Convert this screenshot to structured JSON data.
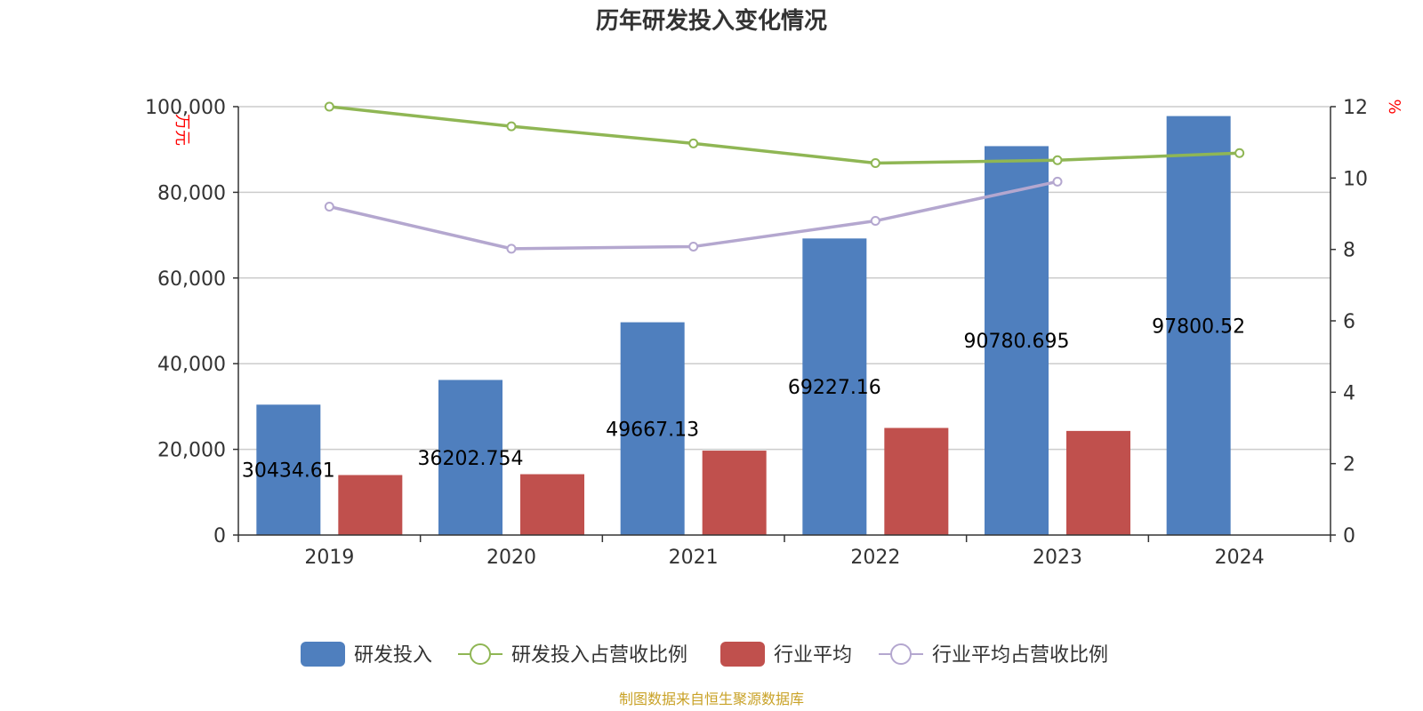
{
  "colors": {
    "rd_bar": "#4f7fbe",
    "industry_bar": "#c0504d",
    "rd_ratio_line": "#8fb654",
    "industry_ratio_line": "#b4a7cf",
    "grid": "#cccccc",
    "axis": "#333333",
    "axis_name": "#ff0000",
    "source": "#c9a227"
  },
  "source_text": "制图数据来自恒生聚源数据库",
  "chart_data": {
    "type": "bar",
    "title": "历年研发投入变化情况",
    "categories": [
      "2019",
      "2020",
      "2021",
      "2022",
      "2023",
      "2024"
    ],
    "ylabel_left": "万元",
    "ylabel_right": "%",
    "ylim_left": [
      0,
      100000
    ],
    "ylim_right": [
      0,
      12
    ],
    "yticks_left": [
      "0",
      "20,000",
      "40,000",
      "60,000",
      "80,000",
      "100,000"
    ],
    "yticks_left_values": [
      0,
      20000,
      40000,
      60000,
      80000,
      100000
    ],
    "yticks_right": [
      "0",
      "2",
      "4",
      "6",
      "8",
      "10",
      "12"
    ],
    "yticks_right_values": [
      0,
      2,
      4,
      6,
      8,
      10,
      12
    ],
    "grid": true,
    "legend_position": "bottom",
    "series": [
      {
        "name": "研发投入",
        "kind": "bar",
        "axis": "left",
        "values": [
          30434.61,
          36202.754,
          49667.13,
          69227.16,
          90780.695,
          97800.52
        ],
        "labels": [
          "30434.61",
          "36202.754",
          "49667.13",
          "69227.16",
          "90780.695",
          "97800.52"
        ]
      },
      {
        "name": "研发投入占营收比例",
        "kind": "line",
        "axis": "right",
        "values": [
          12.0,
          11.45,
          10.97,
          10.42,
          10.5,
          10.7
        ]
      },
      {
        "name": "行业平均",
        "kind": "bar",
        "axis": "left",
        "values": [
          14000,
          14200,
          19700,
          25000,
          24300,
          null
        ]
      },
      {
        "name": "行业平均占营收比例",
        "kind": "line",
        "axis": "right",
        "values": [
          9.2,
          8.02,
          8.08,
          8.8,
          9.9,
          null
        ]
      }
    ]
  }
}
